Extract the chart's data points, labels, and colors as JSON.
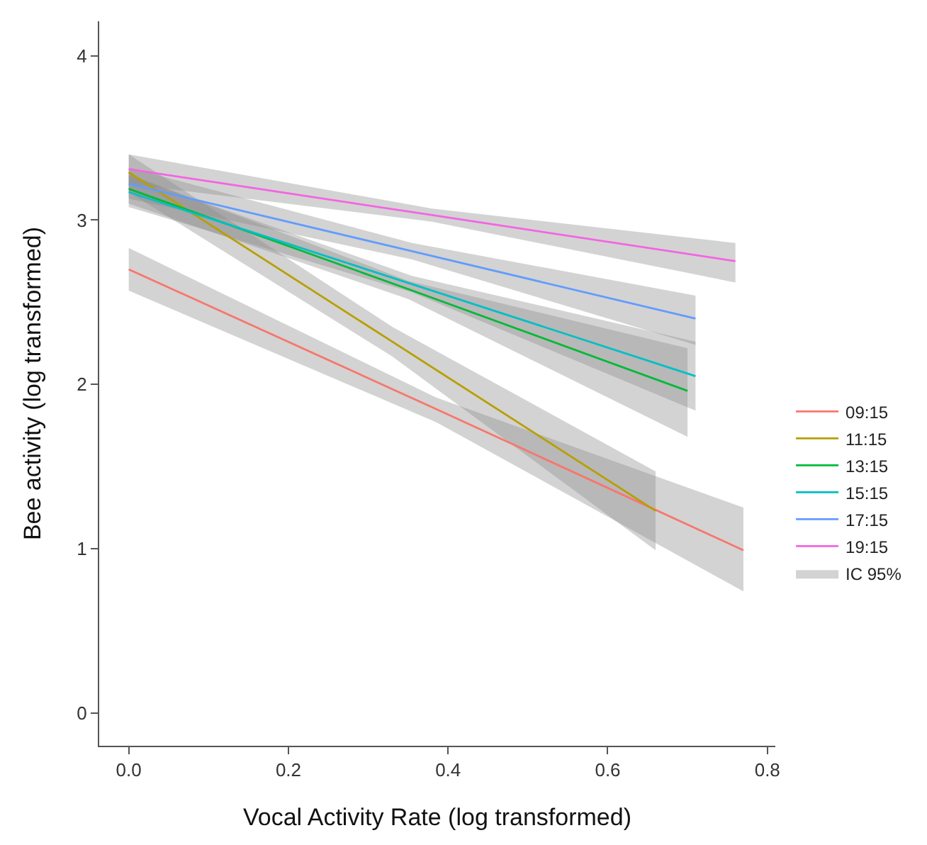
{
  "chart_data": {
    "type": "line",
    "xlabel": "Vocal Activity Rate (log transformed)",
    "ylabel": "Bee activity (log transformed)",
    "xlim": [
      -0.037,
      0.81
    ],
    "xticks": [
      {
        "value": 0,
        "label": "0.0"
      },
      0.2,
      0.4,
      0.6,
      0.8
    ],
    "ylim": [
      -0.2,
      4.21
    ],
    "yticks": [
      0,
      1,
      2,
      3,
      4
    ],
    "legend": "right",
    "marker": "none",
    "line_style": "solid",
    "annotations": [
      "IC 95%"
    ],
    "series": [
      {
        "name": "09:15",
        "color": "#f8766d",
        "x": [
          0,
          0.385,
          0.77
        ],
        "values": [
          2.7,
          1.85,
          0.99
        ],
        "lower": [
          2.57,
          1.77,
          0.74
        ],
        "upper": [
          2.83,
          1.92,
          1.25
        ]
      },
      {
        "name": "11:15",
        "color": "#b79f00",
        "x": [
          0,
          0.33,
          0.66
        ],
        "values": [
          3.29,
          2.26,
          1.23
        ],
        "lower": [
          3.17,
          2.17,
          0.99
        ],
        "upper": [
          3.4,
          2.35,
          1.47
        ]
      },
      {
        "name": "13:15",
        "color": "#00ba38",
        "x": [
          0,
          0.35,
          0.7
        ],
        "values": [
          3.19,
          2.58,
          1.96
        ],
        "lower": [
          3.1,
          2.52,
          1.68
        ],
        "upper": [
          3.28,
          2.63,
          2.22
        ]
      },
      {
        "name": "15:15",
        "color": "#00bfc4",
        "x": [
          0,
          0.355,
          0.71
        ],
        "values": [
          3.17,
          2.61,
          2.05
        ],
        "lower": [
          3.08,
          2.56,
          1.84
        ],
        "upper": [
          3.27,
          2.66,
          2.26
        ]
      },
      {
        "name": "17:15",
        "color": "#619cff",
        "x": [
          0,
          0.355,
          0.71
        ],
        "values": [
          3.22,
          2.81,
          2.4
        ],
        "lower": [
          3.13,
          2.76,
          2.24
        ],
        "upper": [
          3.32,
          2.86,
          2.54
        ]
      },
      {
        "name": "19:15",
        "color": "#f564e3",
        "x": [
          0,
          0.38,
          0.76
        ],
        "values": [
          3.31,
          3.03,
          2.75
        ],
        "lower": [
          3.22,
          2.99,
          2.62
        ],
        "upper": [
          3.4,
          3.07,
          2.86
        ]
      }
    ]
  }
}
